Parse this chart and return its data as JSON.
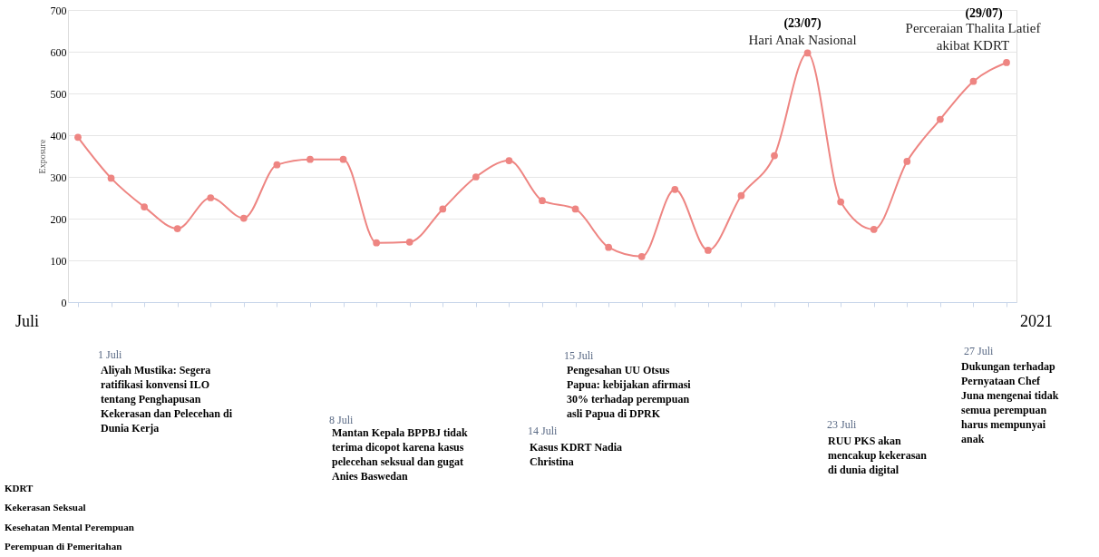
{
  "chart_data": {
    "type": "line",
    "ylabel": "Exposure",
    "categories": [
      null,
      null,
      null,
      null,
      null,
      null,
      null,
      null,
      null,
      null,
      null,
      null,
      null,
      null,
      null,
      null,
      null,
      null,
      null,
      null,
      null,
      null,
      null,
      null,
      null,
      null,
      null,
      null,
      null
    ],
    "series": [
      {
        "color": "#ee8582",
        "values": [
          395,
          297,
          228,
          176,
          250,
          201,
          329,
          342,
          342,
          142,
          144,
          223,
          300,
          339,
          243,
          223,
          131,
          109,
          270,
          124,
          255,
          351,
          597,
          240,
          174,
          337,
          438,
          529,
          574
        ]
      }
    ],
    "ylim": [
      0,
      700
    ],
    "yticks": [
      0,
      100,
      200,
      300,
      400,
      500,
      600,
      700
    ],
    "grid": "y",
    "marker": "circle",
    "tick_labels": "y",
    "annotations": [
      "(23/07)",
      "Hari Anak Nasional",
      "(29/07)",
      "Perceraian Thalita Latief\nakibat KDRT",
      "Juli",
      "2021",
      "1 Juli",
      "Aliyah Mustika: Segera\nratifikasi konvensi ILO\ntentang Penghapusan\nKekerasan dan Pelecehan di\nDunia Kerja",
      "8 Juli",
      "Mantan Kepala BPPBJ tidak\nterima dicopot karena kasus\npelecehan seksual dan gugat\nAnies Baswedan",
      "14 Juli",
      "Kasus KDRT Nadia\nChristina",
      "15 Juli",
      "Pengesahan UU Otsus\nPapua: kebijakan afirmasi\n30% terhadap perempuan\nasli Papua di DPRK",
      "23 Juli",
      "RUU PKS akan\nmencakup kekerasan\ndi dunia digital",
      "27 Juli",
      "Dukungan terhadap\nPernyataan Chef\nJuna mengenai tidak\nsemua perempuan\nharus mempunyai\nanak",
      "KDRT",
      "Kekerasan Seksual",
      "Kesehatan Mental Perempuan",
      "Perempuan di Pemeritahan"
    ]
  }
}
